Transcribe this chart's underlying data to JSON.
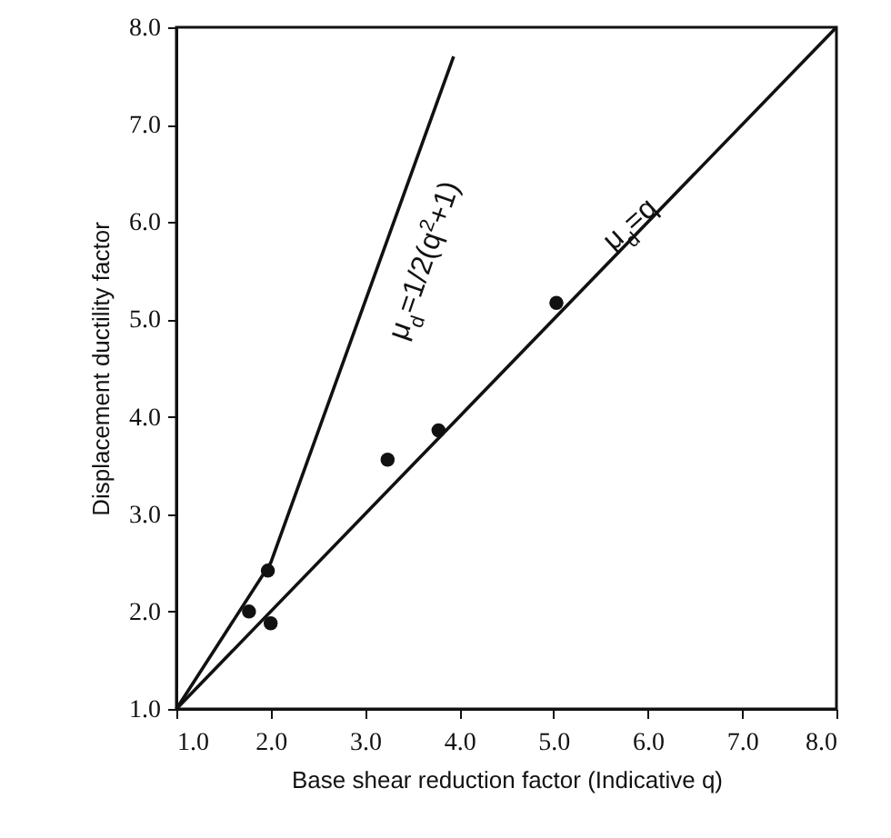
{
  "chart_data": {
    "type": "scatter",
    "xlabel": "Base shear reduction factor (Indicative q)",
    "ylabel": "Displacement ductility factor",
    "xlim": [
      1.0,
      8.0
    ],
    "ylim": [
      1.0,
      8.0
    ],
    "xticks": [
      {
        "value": 1,
        "label": "1.0"
      },
      {
        "value": 2,
        "label": "2.0"
      },
      {
        "value": 3,
        "label": "3.0"
      },
      {
        "value": 4,
        "label": "4.0"
      },
      {
        "value": 5,
        "label": "5.0"
      },
      {
        "value": 6,
        "label": "6.0"
      },
      {
        "value": 7,
        "label": "7.0"
      },
      {
        "value": 8,
        "label": "8.0"
      }
    ],
    "yticks": [
      {
        "value": 1,
        "label": "1.0"
      },
      {
        "value": 2,
        "label": "2.0"
      },
      {
        "value": 3,
        "label": "3.0"
      },
      {
        "value": 4,
        "label": "4.0"
      },
      {
        "value": 5,
        "label": "5.0"
      },
      {
        "value": 6,
        "label": "6.0"
      },
      {
        "value": 7,
        "label": "7.0"
      },
      {
        "value": 8,
        "label": "8.0"
      }
    ],
    "grid": false,
    "series": [
      {
        "color": "#111111",
        "marker": "circle",
        "x": [
          1.77,
          1.97,
          2.0,
          3.24,
          3.78,
          5.03
        ],
        "values": [
          2.0,
          2.42,
          1.88,
          3.56,
          3.86,
          5.17
        ]
      },
      {
        "type": "line",
        "color": "#111111",
        "line_style": "solid",
        "x": [
          1.0,
          2.0,
          3.94
        ],
        "values": [
          1.0,
          2.5,
          7.7
        ]
      },
      {
        "type": "line",
        "color": "#111111",
        "line_style": "solid",
        "x": [
          1.0,
          8.0
        ],
        "values": [
          1.0,
          8.0
        ]
      }
    ],
    "annotations": [
      "μ$_{d}$=1/2(q$^{2}$+1)",
      "μ$_{d}$=q"
    ]
  }
}
